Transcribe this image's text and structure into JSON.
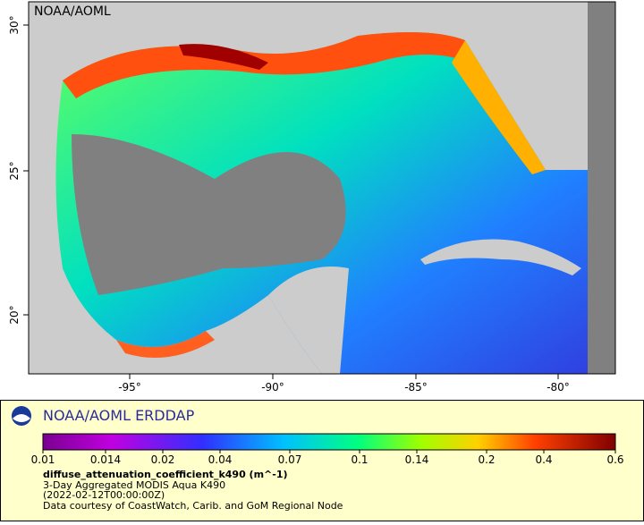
{
  "map": {
    "watermark": "NOAA/AOML",
    "lon_ticks": [
      "-95°",
      "-90°",
      "-85°",
      "-80°"
    ],
    "lat_ticks": [
      "30°",
      "25°",
      "20°"
    ]
  },
  "legend": {
    "title": "NOAA/AOML ERDDAP",
    "colorbar_ticks": [
      0.01,
      0.014,
      0.02,
      0.04,
      0.07,
      0.1,
      0.14,
      0.2,
      0.4,
      0.6
    ],
    "variable": "diffuse_attenuation_coefficient_k490 (m^-1)",
    "dataset": "3-Day Aggregated MODIS Aqua K490",
    "time": "(2022-02-12T00:00:00Z)",
    "credit": "Data courtesy of CoastWatch, Carib. and GoM Regional Node"
  }
}
